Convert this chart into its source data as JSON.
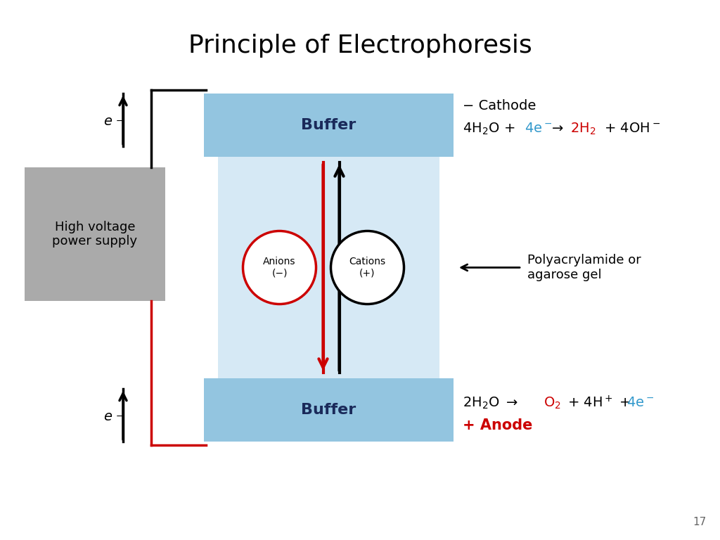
{
  "title": "Principle of Electrophoresis",
  "title_fontsize": 26,
  "background_color": "#ffffff",
  "blue_buffer": "#93c5e0",
  "light_blue_gel": "#d6e9f5",
  "gray_box": "#aaaaaa",
  "cathode_text": "− Cathode",
  "anode_text": "+ Anode",
  "gel_label": "Polyacrylamide or\nagarose gel",
  "buffer_label": "Buffer",
  "power_label": "High voltage\npower supply",
  "anions_label": "Anions\n(−)",
  "cations_label": "Cations\n(+)",
  "red_color": "#cc0000",
  "blue_color": "#3399cc",
  "black_color": "#111111",
  "dark_navy": "#1a2a5a",
  "page_number": "17"
}
